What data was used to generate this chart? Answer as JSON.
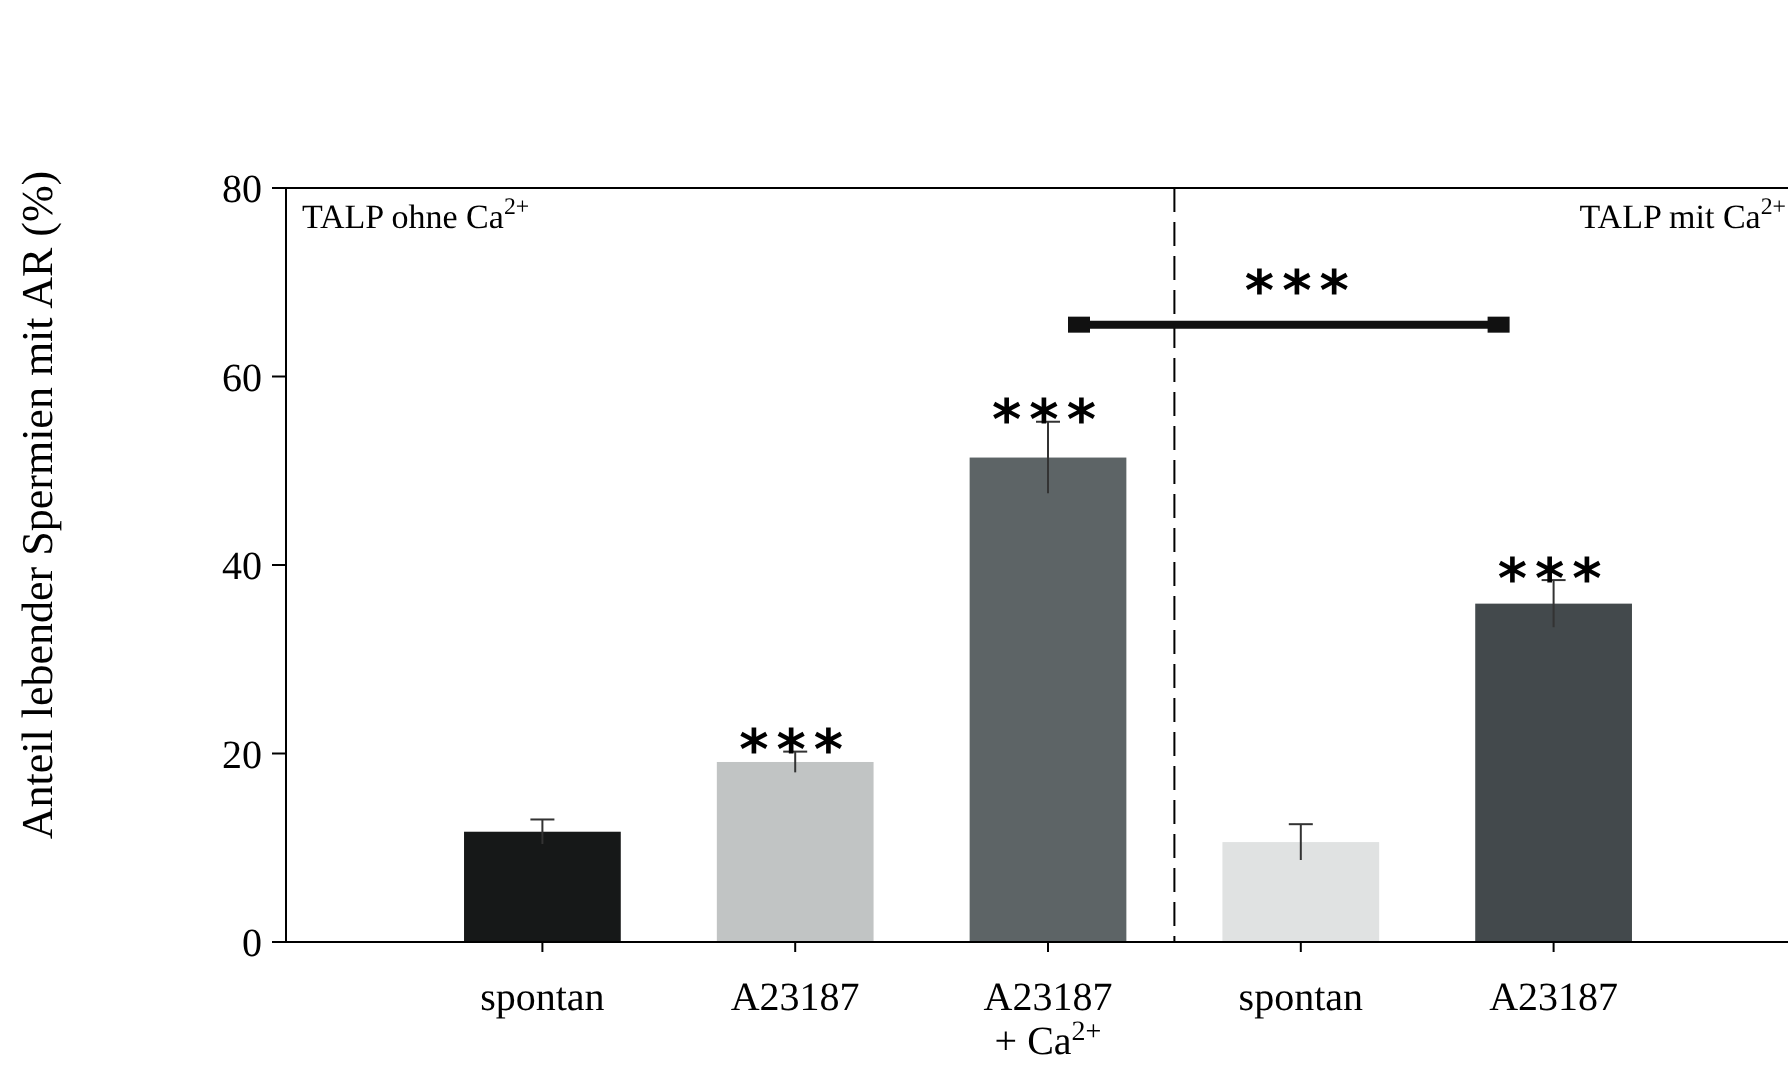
{
  "chart_data": {
    "type": "bar",
    "ylabel": "Anteil lebender Spermien mit AR (%)",
    "categories": [
      "spontan",
      "A23187",
      "A23187 + Ca$^{2+}$",
      "spontan",
      "A23187"
    ],
    "values": [
      11.7,
      19.1,
      51.4,
      10.6,
      35.9
    ],
    "errors": [
      1.3,
      1.1,
      3.8,
      1.9,
      2.5
    ],
    "colors": [
      "#161818",
      "#c1c4c4",
      "#5d6466",
      "#e0e2e2",
      "#43494c"
    ],
    "ylim": [
      0,
      80
    ],
    "yticks": [
      0,
      20,
      40,
      60,
      80
    ],
    "annotations": [
      "TALP ohne Ca$^{2+}$",
      "TALP mit Ca$^{2+}$",
      "***",
      "***",
      "***",
      "***"
    ]
  }
}
